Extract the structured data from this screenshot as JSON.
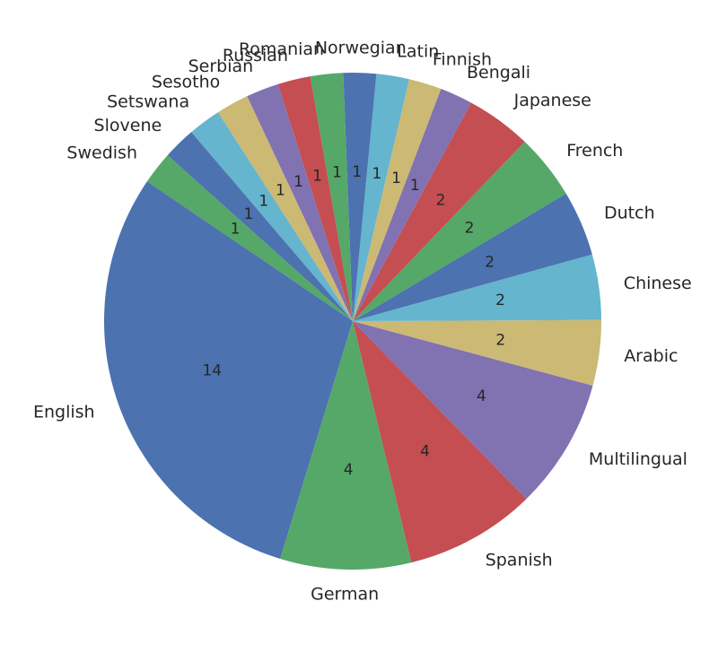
{
  "chart_data": {
    "type": "pie",
    "title": "",
    "start_angle_deg": 145.8,
    "direction": "counterclockwise",
    "slices": [
      {
        "label": "English",
        "value": 14,
        "color": "#4c72b0"
      },
      {
        "label": "German",
        "value": 4,
        "color": "#55a868"
      },
      {
        "label": "Spanish",
        "value": 4,
        "color": "#c44e52"
      },
      {
        "label": "Multilingual",
        "value": 4,
        "color": "#8172b2"
      },
      {
        "label": "Arabic",
        "value": 2,
        "color": "#ccb974"
      },
      {
        "label": "Chinese",
        "value": 2,
        "color": "#64b5cd"
      },
      {
        "label": "Dutch",
        "value": 2,
        "color": "#4c72b0"
      },
      {
        "label": "French",
        "value": 2,
        "color": "#55a868"
      },
      {
        "label": "Japanese",
        "value": 2,
        "color": "#c44e52"
      },
      {
        "label": "Bengali",
        "value": 1,
        "color": "#8172b2"
      },
      {
        "label": "Finnish",
        "value": 1,
        "color": "#ccb974"
      },
      {
        "label": "Latin",
        "value": 1,
        "color": "#64b5cd"
      },
      {
        "label": "Norwegian",
        "value": 1,
        "color": "#4c72b0"
      },
      {
        "label": "Romanian",
        "value": 1,
        "color": "#55a868"
      },
      {
        "label": "Russian",
        "value": 1,
        "color": "#c44e52"
      },
      {
        "label": "Serbian",
        "value": 1,
        "color": "#8172b2"
      },
      {
        "label": "Sesotho",
        "value": 1,
        "color": "#ccb974"
      },
      {
        "label": "Setswana",
        "value": 1,
        "color": "#64b5cd"
      },
      {
        "label": "Slovene",
        "value": 1,
        "color": "#4c72b0"
      },
      {
        "label": "Swedish",
        "value": 1,
        "color": "#55a868"
      }
    ]
  }
}
